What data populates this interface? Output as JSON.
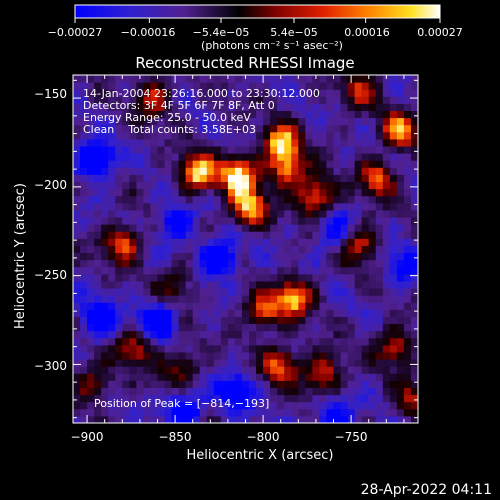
{
  "chart_data": {
    "type": "heatmap",
    "title": "Reconstructed RHESSI Image",
    "xlabel": "Heliocentric X (arcsec)",
    "ylabel": "Heliocentric Y (arcsec)",
    "xlim": [
      -908,
      -712
    ],
    "ylim": [
      -333,
      -137
    ],
    "x_ticks": [
      -900,
      -850,
      -800,
      -750
    ],
    "x_tick_labels": [
      "−900",
      "−850",
      "−800",
      "−750"
    ],
    "y_ticks": [
      -150,
      -200,
      -250,
      -300
    ],
    "y_tick_labels": [
      "−150",
      "−200",
      "−250",
      "−300"
    ],
    "colorbar": {
      "range": [
        -0.00027,
        0.00027
      ],
      "tick_values": [
        -0.00027,
        -0.00016,
        -5.4e-05,
        5.4e-05,
        0.00016,
        0.00027
      ],
      "tick_labels": [
        "−0.00027",
        "−0.00016",
        "−5.4e−05",
        "5.4e−05",
        "0.00016",
        "0.00027"
      ],
      "unit_label": "(photons cm⁻² s⁻¹ asec⁻²)",
      "colormap": [
        "#0000ff",
        "#3020d0",
        "#502090",
        "#000000",
        "#800000",
        "#e02000",
        "#ff8000",
        "#ffe020",
        "#ffffff"
      ]
    },
    "annotations": [
      "14-Jan-2004 23:26:16.000 to 23:30:12.000",
      "Detectors: 3F 4F 5F 6F 7F 8F, Att 0",
      "Energy Range: 25.0 - 50.0 keV",
      "Clean    Total counts: 3.58E+03"
    ],
    "peak_label": "Position of Peak = [−814,−193]",
    "peak_position": [
      -814,
      -193
    ],
    "hotspots": [
      {
        "x": -837,
        "y": -192,
        "v": 1.0
      },
      {
        "x": -814,
        "y": -193,
        "v": 1.0
      },
      {
        "x": -808,
        "y": -212,
        "v": 0.95
      },
      {
        "x": -790,
        "y": -175,
        "v": 0.9
      },
      {
        "x": -786,
        "y": -190,
        "v": 0.8
      },
      {
        "x": -770,
        "y": -205,
        "v": 0.85
      },
      {
        "x": -782,
        "y": -262,
        "v": 0.9
      },
      {
        "x": -800,
        "y": -270,
        "v": 0.7
      },
      {
        "x": -790,
        "y": -300,
        "v": 0.75
      },
      {
        "x": -766,
        "y": -305,
        "v": 0.7
      },
      {
        "x": -880,
        "y": -232,
        "v": 0.75
      },
      {
        "x": -873,
        "y": -290,
        "v": 0.65
      },
      {
        "x": -847,
        "y": -302,
        "v": 0.55
      },
      {
        "x": -735,
        "y": -195,
        "v": 0.7
      },
      {
        "x": -722,
        "y": -168,
        "v": 0.8
      },
      {
        "x": -745,
        "y": -232,
        "v": 0.65
      },
      {
        "x": -725,
        "y": -290,
        "v": 0.65
      },
      {
        "x": -745,
        "y": -145,
        "v": 0.55
      },
      {
        "x": -862,
        "y": -150,
        "v": 0.6
      },
      {
        "x": -897,
        "y": -310,
        "v": 0.55
      },
      {
        "x": -850,
        "y": -255,
        "v": 0.45
      },
      {
        "x": -715,
        "y": -320,
        "v": 0.5
      }
    ],
    "coldspots": [
      {
        "x": -895,
        "y": -185,
        "v": -0.8
      },
      {
        "x": -893,
        "y": -275,
        "v": -0.7
      },
      {
        "x": -860,
        "y": -275,
        "v": -0.75
      },
      {
        "x": -845,
        "y": -325,
        "v": -0.7
      },
      {
        "x": -825,
        "y": -240,
        "v": -0.8
      },
      {
        "x": -815,
        "y": -315,
        "v": -0.6
      },
      {
        "x": -760,
        "y": -225,
        "v": -0.5
      },
      {
        "x": -760,
        "y": -330,
        "v": -0.6
      },
      {
        "x": -720,
        "y": -245,
        "v": -0.5
      },
      {
        "x": -850,
        "y": -220,
        "v": -0.55
      }
    ]
  },
  "footer": {
    "timestamp": "28-Apr-2022 04:11"
  }
}
